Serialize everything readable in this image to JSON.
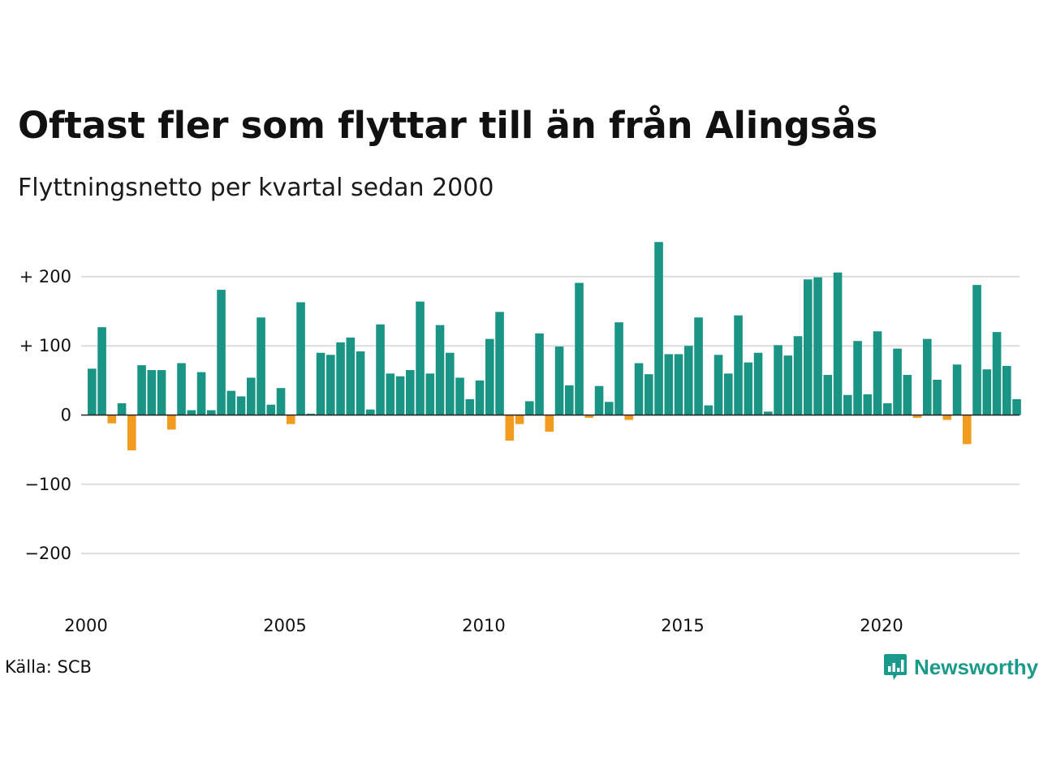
{
  "header": {
    "title": "Oftast fler som flyttar till än från Alingsås",
    "subtitle": "Flyttningsnetto per kvartal sedan 2000"
  },
  "footer": {
    "source": "Källa: SCB",
    "brand": "Newsworthy",
    "brand_icon": "newsworthy-logo-icon"
  },
  "colors": {
    "positive": "#1a9485",
    "negative": "#f29c1f",
    "grid": "#dddddd",
    "zero_line": "#222222",
    "brand": "#1a9a8a"
  },
  "chart_data": {
    "type": "bar",
    "title": "Oftast fler som flyttar till än från Alingsås",
    "subtitle": "Flyttningsnetto per kvartal sedan 2000",
    "xlabel": "",
    "ylabel": "",
    "x_start": 2000,
    "periods_per_year": 4,
    "x_ticks": [
      "2000",
      "2005",
      "2010",
      "2015",
      "2020"
    ],
    "y_ticks": [
      {
        "value": 200,
        "label": "+ 200"
      },
      {
        "value": 100,
        "label": "+ 100"
      },
      {
        "value": 0,
        "label": "0"
      },
      {
        "value": -100,
        "label": "−100"
      },
      {
        "value": -200,
        "label": "−200"
      }
    ],
    "ylim": [
      -250,
      250
    ],
    "grid": true,
    "legend": "none",
    "values": [
      67,
      127,
      -12,
      17,
      -51,
      72,
      65,
      65,
      -21,
      75,
      7,
      62,
      7,
      181,
      35,
      27,
      54,
      141,
      15,
      39,
      -13,
      163,
      2,
      90,
      87,
      105,
      112,
      92,
      8,
      131,
      60,
      56,
      65,
      164,
      60,
      130,
      90,
      54,
      23,
      50,
      110,
      149,
      -37,
      -13,
      20,
      118,
      -24,
      99,
      43,
      191,
      -4,
      42,
      19,
      134,
      -7,
      75,
      59,
      250,
      88,
      88,
      100,
      141,
      14,
      87,
      60,
      144,
      76,
      90,
      5,
      101,
      86,
      114,
      196,
      199,
      58,
      206,
      29,
      107,
      30,
      121,
      17,
      96,
      58,
      -4,
      110,
      51,
      -7,
      73,
      -42,
      188,
      66,
      120,
      71,
      23
    ]
  }
}
